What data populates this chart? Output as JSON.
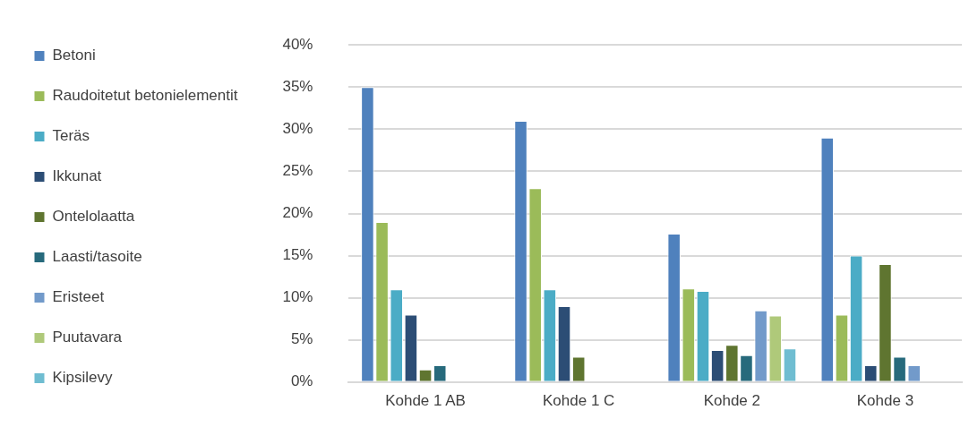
{
  "chart_data": {
    "type": "bar",
    "categories": [
      "Kohde 1 AB",
      "Kohde 1 C",
      "Kohde 2",
      "Kohde 3"
    ],
    "series": [
      {
        "name": "Betoni",
        "color": "#4f81bd",
        "values": [
          35,
          31,
          17.6,
          29
        ]
      },
      {
        "name": "Raudoitetut betonielementit",
        "color": "#9bbb59",
        "values": [
          19,
          23,
          11.1,
          8
        ]
      },
      {
        "name": "Teräs",
        "color": "#4bacc6",
        "values": [
          11,
          11,
          10.8,
          15
        ]
      },
      {
        "name": "Ikkunat",
        "color": "#2c4d75",
        "values": [
          8,
          9,
          3.8,
          2
        ]
      },
      {
        "name": "Ontelolaatta",
        "color": "#5f7530",
        "values": [
          1.5,
          3,
          4.4,
          14
        ]
      },
      {
        "name": "Laasti/tasoite",
        "color": "#276a7c",
        "values": [
          2,
          null,
          3.2,
          3
        ]
      },
      {
        "name": "Eristeet",
        "color": "#729aca",
        "values": [
          null,
          null,
          8.5,
          2
        ]
      },
      {
        "name": "Puutavara",
        "color": "#afc97a",
        "values": [
          null,
          null,
          7.9,
          null
        ]
      },
      {
        "name": "Kipsilevy",
        "color": "#6fbdd1",
        "values": [
          null,
          null,
          4,
          null
        ]
      }
    ],
    "ylim": [
      0,
      40
    ],
    "yticks": [
      {
        "value": 0,
        "label": "0%"
      },
      {
        "value": 5,
        "label": "5%"
      },
      {
        "value": 10,
        "label": "10%"
      },
      {
        "value": 15,
        "label": "15%"
      },
      {
        "value": 20,
        "label": "20%"
      },
      {
        "value": 25,
        "label": "25%"
      },
      {
        "value": 30,
        "label": "30%"
      },
      {
        "value": 35,
        "label": "35%"
      },
      {
        "value": 40,
        "label": "40%"
      }
    ],
    "grid": "y",
    "legend": "left"
  }
}
